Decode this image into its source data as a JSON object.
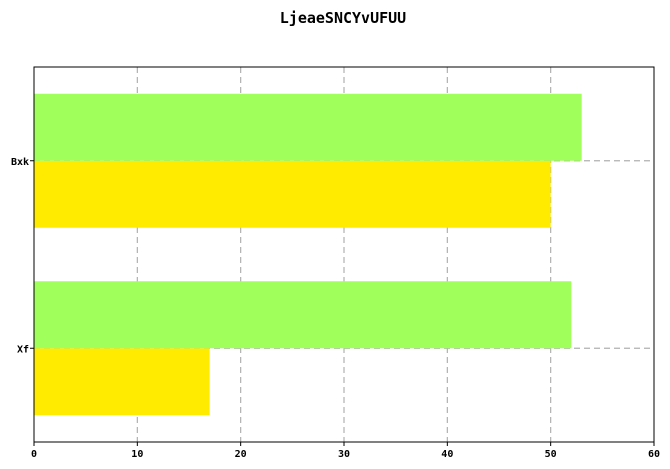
{
  "chart_data": {
    "type": "bar",
    "orientation": "horizontal",
    "title": "LjeaeSNCYvUFUU",
    "xlabel": "",
    "ylabel": "",
    "categories": [
      "Xf",
      "Bxk"
    ],
    "series": [
      {
        "values": [
          17,
          50
        ],
        "color": "#ffeb00"
      },
      {
        "values": [
          52,
          53
        ],
        "color": "#a0ff5a"
      }
    ],
    "xlim": [
      0,
      60
    ],
    "xticks": [
      0,
      10,
      20,
      30,
      40,
      50,
      60
    ],
    "grid": true
  }
}
